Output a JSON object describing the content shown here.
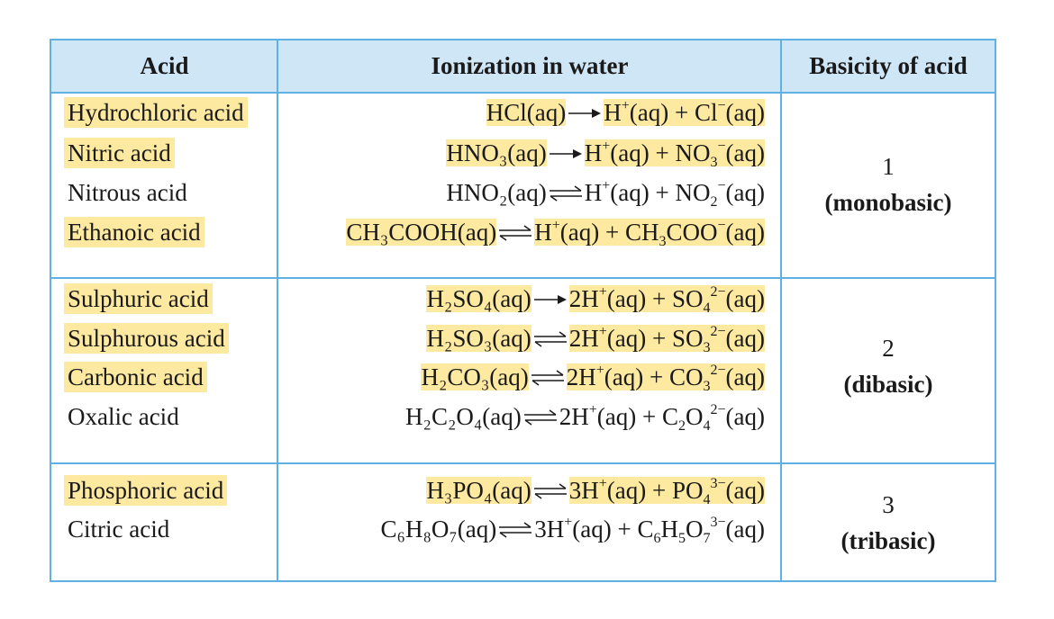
{
  "headers": {
    "acid": "Acid",
    "ionization": "Ionization in water",
    "basicity": "Basicity of acid"
  },
  "groups": [
    {
      "number": "1",
      "word": "(monobasic)",
      "rows": [
        {
          "name": "Hydrochloric acid",
          "highlight": true,
          "reactant": "HCl(aq)",
          "arrow": "forward",
          "products": [
            {
              "t": "H"
            },
            {
              "sup": "+"
            },
            {
              "t": "(aq) + Cl"
            },
            {
              "sup": "−"
            },
            {
              "t": "(aq)"
            }
          ]
        },
        {
          "name": "Nitric acid",
          "highlight": true,
          "reactant": "HNO₃(aq)",
          "arrow": "forward",
          "products": [
            {
              "t": "H"
            },
            {
              "sup": "+"
            },
            {
              "t": "(aq) + NO"
            },
            {
              "sub": "3"
            },
            {
              "sup": "−"
            },
            {
              "t": "(aq)"
            }
          ]
        },
        {
          "name": "Nitrous acid",
          "highlight": false,
          "reactant": "HNO₂(aq)",
          "arrow": "equilibrium",
          "products": [
            {
              "t": "H"
            },
            {
              "sup": "+"
            },
            {
              "t": "(aq) + NO"
            },
            {
              "sub": "2"
            },
            {
              "sup": "−"
            },
            {
              "t": "(aq)"
            }
          ]
        },
        {
          "name": "Ethanoic acid",
          "highlight": true,
          "reactant": "CH₃COOH(aq)",
          "arrow": "equilibrium",
          "products": [
            {
              "t": "H"
            },
            {
              "sup": "+"
            },
            {
              "t": "(aq) + CH"
            },
            {
              "sub": "3"
            },
            {
              "t": "COO"
            },
            {
              "sup": "−"
            },
            {
              "t": "(aq)"
            }
          ]
        }
      ]
    },
    {
      "number": "2",
      "word": "(dibasic)",
      "rows": [
        {
          "name": "Sulphuric acid",
          "highlight": true,
          "reactant": "H₂SO₄(aq)",
          "arrow": "forward",
          "products": [
            {
              "t": "2H"
            },
            {
              "sup": "+"
            },
            {
              "t": "(aq) + SO"
            },
            {
              "sub": "4"
            },
            {
              "sup": "2−"
            },
            {
              "t": "(aq)"
            }
          ]
        },
        {
          "name": "Sulphurous acid",
          "highlight": true,
          "reactant": "H₂SO₃(aq)",
          "arrow": "equilibrium",
          "products": [
            {
              "t": "2H"
            },
            {
              "sup": "+"
            },
            {
              "t": "(aq) + SO"
            },
            {
              "sub": "3"
            },
            {
              "sup": "2−"
            },
            {
              "t": "(aq)"
            }
          ]
        },
        {
          "name": "Carbonic acid",
          "highlight": true,
          "reactant": "H₂CO₃(aq)",
          "arrow": "equilibrium",
          "products": [
            {
              "t": "2H"
            },
            {
              "sup": "+"
            },
            {
              "t": "(aq) + CO"
            },
            {
              "sub": "3"
            },
            {
              "sup": "2−"
            },
            {
              "t": "(aq)"
            }
          ]
        },
        {
          "name": "Oxalic acid",
          "highlight": false,
          "reactant": "H₂C₂O₄(aq)",
          "arrow": "equilibrium",
          "products": [
            {
              "t": "2H"
            },
            {
              "sup": "+"
            },
            {
              "t": "(aq) + C"
            },
            {
              "sub": "2"
            },
            {
              "t": "O"
            },
            {
              "sub": "4"
            },
            {
              "sup": "2−"
            },
            {
              "t": "(aq)"
            }
          ]
        }
      ]
    },
    {
      "number": "3",
      "word": "(tribasic)",
      "rows": [
        {
          "name": "Phosphoric acid",
          "highlight": true,
          "reactant": "H₃PO₄(aq)",
          "arrow": "equilibrium",
          "products": [
            {
              "t": "3H"
            },
            {
              "sup": "+"
            },
            {
              "t": "(aq) + PO"
            },
            {
              "sub": "4"
            },
            {
              "sup": "3−"
            },
            {
              "t": "(aq)"
            }
          ]
        },
        {
          "name": "Citric acid",
          "highlight": false,
          "reactant": "C₆H₈O₇(aq)",
          "arrow": "equilibrium",
          "products": [
            {
              "t": "3H"
            },
            {
              "sup": "+"
            },
            {
              "t": "(aq) + C"
            },
            {
              "sub": "6"
            },
            {
              "t": "H"
            },
            {
              "sub": "5"
            },
            {
              "t": "O"
            },
            {
              "sub": "7"
            },
            {
              "sup": "3−"
            },
            {
              "t": "(aq)"
            }
          ]
        }
      ]
    }
  ],
  "colors": {
    "border": "#5fb0e3",
    "header_bg": "#cfe6f7",
    "highlight": "#fde9a0"
  }
}
